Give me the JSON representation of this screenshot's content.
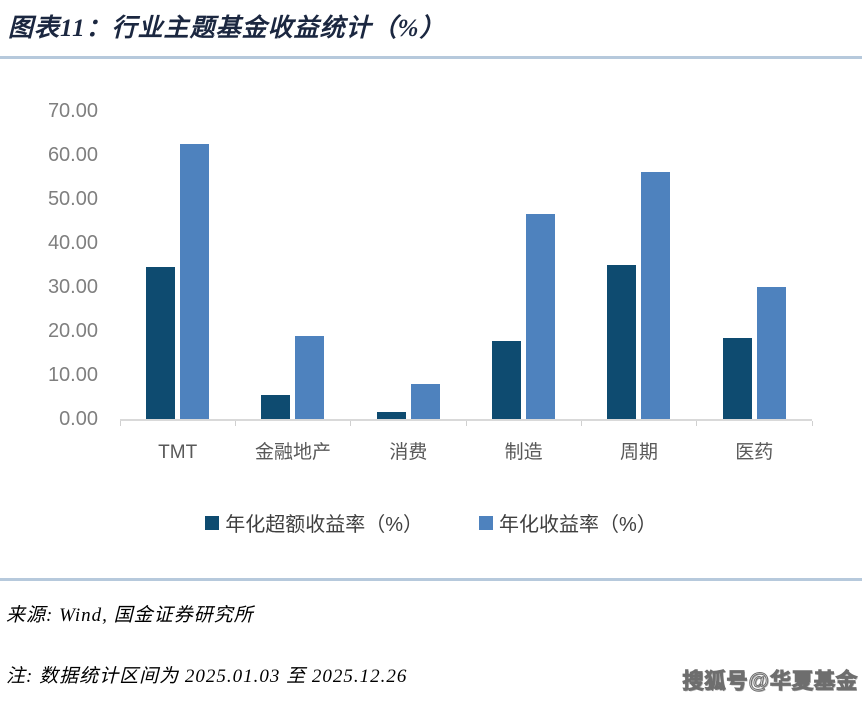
{
  "page": {
    "title": "图表11：行业主题基金收益统计（%）"
  },
  "chart_data": {
    "type": "bar",
    "title": "图表11：行业主题基金收益统计（%）",
    "categories": [
      "TMT",
      "金融地产",
      "消费",
      "制造",
      "周期",
      "医药"
    ],
    "series": [
      {
        "name": "年化超额收益率（%）",
        "color": "#0e4b70",
        "values": [
          34.5,
          5.5,
          1.5,
          17.8,
          35.0,
          18.4
        ]
      },
      {
        "name": "年化收益率（%）",
        "color": "#4e82be",
        "values": [
          62.5,
          18.8,
          8.0,
          46.6,
          56.2,
          30.0
        ]
      }
    ],
    "xlabel": "",
    "ylabel": "",
    "ylim": [
      0,
      70
    ],
    "y_tick_labels": [
      "70.00",
      "60.00",
      "50.00",
      "40.00",
      "30.00",
      "20.00",
      "10.00",
      "0.00"
    ],
    "grid": false,
    "legend_position": "bottom"
  },
  "footer": {
    "source": "来源: Wind, 国金证券研究所",
    "note": "注: 数据统计区间为 2025.01.03 至 2025.12.26",
    "watermark": "搜狐号@华夏基金"
  },
  "colors": {
    "series_dark": "#0e4b70",
    "series_light": "#4e82be",
    "divider": "#b6c9dc",
    "axis_line": "#d9d9d9",
    "tick_label": "#7f7f7f",
    "category_label": "#595959",
    "title_text": "#1b2740"
  }
}
